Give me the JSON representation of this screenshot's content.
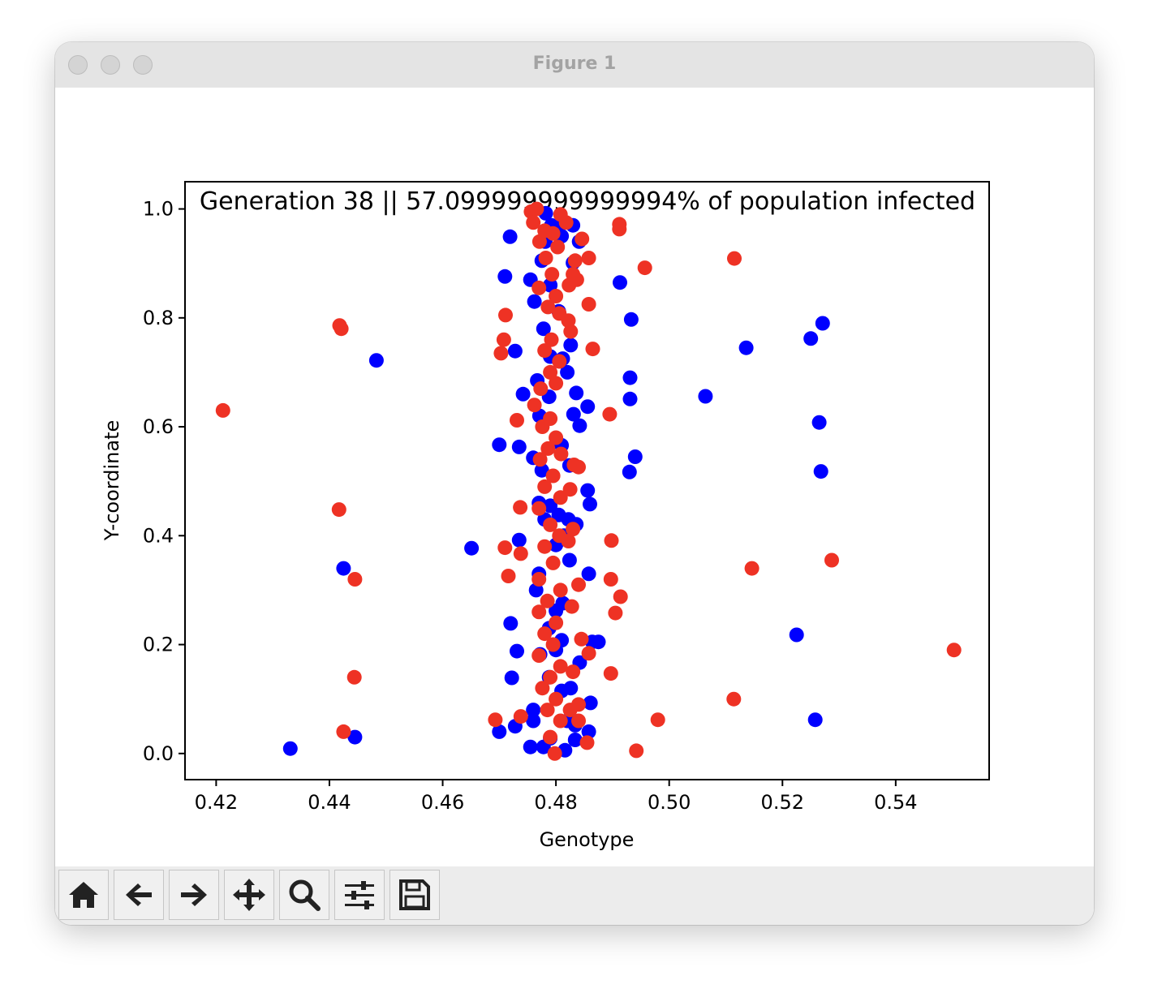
{
  "window": {
    "title": "Figure 1"
  },
  "toolbar": {
    "buttons": [
      {
        "name": "home-button",
        "icon": "home-icon"
      },
      {
        "name": "back-button",
        "icon": "arrow-left-icon"
      },
      {
        "name": "forward-button",
        "icon": "arrow-right-icon"
      },
      {
        "name": "pan-button",
        "icon": "move-icon"
      },
      {
        "name": "zoom-button",
        "icon": "search-icon"
      },
      {
        "name": "configure-subplots-button",
        "icon": "sliders-icon"
      },
      {
        "name": "save-button",
        "icon": "save-icon"
      }
    ]
  },
  "chart_data": {
    "type": "scatter",
    "title": "Generation 38 || 57.099999999999994% of population infected",
    "xlabel": "Genotype",
    "ylabel": "Y-coordinate",
    "xlim": [
      0.4145,
      0.5565
    ],
    "ylim": [
      -0.048,
      1.05
    ],
    "xticks": [
      0.42,
      0.44,
      0.46,
      0.48,
      0.5,
      0.52,
      0.54
    ],
    "xtick_labels": [
      "0.42",
      "0.44",
      "0.46",
      "0.48",
      "0.50",
      "0.52",
      "0.54"
    ],
    "yticks": [
      0.0,
      0.2,
      0.4,
      0.6,
      0.8,
      1.0
    ],
    "ytick_labels": [
      "0.0",
      "0.2",
      "0.4",
      "0.6",
      "0.8",
      "1.0"
    ],
    "grid": false,
    "legend": "none",
    "colors": {
      "blue": "#0000ff",
      "red": "#ee3224"
    },
    "series": [
      {
        "color": "#0000ff",
        "points": [
          [
            0.4331,
            0.009
          ],
          [
            0.4425,
            0.34
          ],
          [
            0.4445,
            0.03
          ],
          [
            0.4483,
            0.722
          ],
          [
            0.4651,
            0.377
          ],
          [
            0.47,
            0.567
          ],
          [
            0.471,
            0.876
          ],
          [
            0.4719,
            0.949
          ],
          [
            0.4728,
            0.739
          ],
          [
            0.472,
            0.239
          ],
          [
            0.4731,
            0.188
          ],
          [
            0.4722,
            0.139
          ],
          [
            0.4728,
            0.05
          ],
          [
            0.47,
            0.04
          ],
          [
            0.4735,
            0.563
          ],
          [
            0.4742,
            0.66
          ],
          [
            0.4735,
            0.392
          ],
          [
            0.4755,
            0.012
          ],
          [
            0.4782,
            0.992
          ],
          [
            0.4792,
            0.97
          ],
          [
            0.4803,
            0.965
          ],
          [
            0.483,
            0.97
          ],
          [
            0.4841,
            0.94
          ],
          [
            0.481,
            0.95
          ],
          [
            0.4775,
            0.905
          ],
          [
            0.483,
            0.901
          ],
          [
            0.479,
            0.86
          ],
          [
            0.4805,
            0.812
          ],
          [
            0.4826,
            0.75
          ],
          [
            0.4812,
            0.725
          ],
          [
            0.479,
            0.729
          ],
          [
            0.482,
            0.7
          ],
          [
            0.4788,
            0.655
          ],
          [
            0.4836,
            0.662
          ],
          [
            0.4856,
            0.637
          ],
          [
            0.4831,
            0.623
          ],
          [
            0.4842,
            0.602
          ],
          [
            0.481,
            0.566
          ],
          [
            0.4824,
            0.529
          ],
          [
            0.4856,
            0.483
          ],
          [
            0.486,
            0.458
          ],
          [
            0.479,
            0.455
          ],
          [
            0.4805,
            0.438
          ],
          [
            0.4822,
            0.43
          ],
          [
            0.4836,
            0.421
          ],
          [
            0.4814,
            0.4
          ],
          [
            0.48,
            0.383
          ],
          [
            0.4824,
            0.355
          ],
          [
            0.4858,
            0.33
          ],
          [
            0.4812,
            0.276
          ],
          [
            0.48,
            0.262
          ],
          [
            0.4788,
            0.23
          ],
          [
            0.4842,
            0.167
          ],
          [
            0.4875,
            0.205
          ],
          [
            0.4864,
            0.205
          ],
          [
            0.481,
            0.208
          ],
          [
            0.48,
            0.19
          ],
          [
            0.4788,
            0.14
          ],
          [
            0.481,
            0.115
          ],
          [
            0.4826,
            0.12
          ],
          [
            0.4861,
            0.093
          ],
          [
            0.482,
            0.06
          ],
          [
            0.4834,
            0.052
          ],
          [
            0.4858,
            0.04
          ],
          [
            0.4834,
            0.025
          ],
          [
            0.4816,
            0.006
          ],
          [
            0.479,
            0.028
          ],
          [
            0.4778,
            0.012
          ],
          [
            0.476,
            0.06
          ],
          [
            0.4772,
            0.182
          ],
          [
            0.476,
            0.08
          ],
          [
            0.4765,
            0.3
          ],
          [
            0.477,
            0.33
          ],
          [
            0.478,
            0.43
          ],
          [
            0.477,
            0.46
          ],
          [
            0.4775,
            0.52
          ],
          [
            0.476,
            0.543
          ],
          [
            0.4771,
            0.62
          ],
          [
            0.4767,
            0.685
          ],
          [
            0.4778,
            0.78
          ],
          [
            0.4762,
            0.83
          ],
          [
            0.4755,
            0.87
          ],
          [
            0.4781,
            0.94
          ],
          [
            0.4913,
            0.865
          ],
          [
            0.4933,
            0.797
          ],
          [
            0.4931,
            0.69
          ],
          [
            0.4931,
            0.651
          ],
          [
            0.494,
            0.545
          ],
          [
            0.493,
            0.517
          ],
          [
            0.5064,
            0.656
          ],
          [
            0.5136,
            0.745
          ],
          [
            0.5225,
            0.218
          ],
          [
            0.525,
            0.762
          ],
          [
            0.5258,
            0.062
          ],
          [
            0.5265,
            0.608
          ],
          [
            0.5268,
            0.518
          ],
          [
            0.5271,
            0.79
          ]
        ]
      },
      {
        "color": "#ee3224",
        "points": [
          [
            0.4212,
            0.63
          ],
          [
            0.4417,
            0.448
          ],
          [
            0.4418,
            0.786
          ],
          [
            0.4421,
            0.78
          ],
          [
            0.4425,
            0.04
          ],
          [
            0.4444,
            0.14
          ],
          [
            0.4445,
            0.32
          ],
          [
            0.4693,
            0.062
          ],
          [
            0.4703,
            0.735
          ],
          [
            0.4708,
            0.76
          ],
          [
            0.4711,
            0.805
          ],
          [
            0.471,
            0.378
          ],
          [
            0.4716,
            0.326
          ],
          [
            0.4731,
            0.612
          ],
          [
            0.4737,
            0.452
          ],
          [
            0.4738,
            0.367
          ],
          [
            0.4738,
            0.068
          ],
          [
            0.4756,
            0.995
          ],
          [
            0.476,
            0.975
          ],
          [
            0.4766,
            1.0
          ],
          [
            0.4771,
            0.94
          ],
          [
            0.478,
            0.96
          ],
          [
            0.4795,
            0.955
          ],
          [
            0.4808,
            0.99
          ],
          [
            0.4818,
            0.975
          ],
          [
            0.4803,
            0.93
          ],
          [
            0.4782,
            0.91
          ],
          [
            0.4793,
            0.88
          ],
          [
            0.477,
            0.855
          ],
          [
            0.48,
            0.84
          ],
          [
            0.4786,
            0.82
          ],
          [
            0.4806,
            0.808
          ],
          [
            0.4822,
            0.795
          ],
          [
            0.4792,
            0.76
          ],
          [
            0.478,
            0.74
          ],
          [
            0.4806,
            0.72
          ],
          [
            0.479,
            0.7
          ],
          [
            0.4773,
            0.67
          ],
          [
            0.48,
            0.68
          ],
          [
            0.4762,
            0.64
          ],
          [
            0.479,
            0.615
          ],
          [
            0.4776,
            0.6
          ],
          [
            0.48,
            0.58
          ],
          [
            0.4786,
            0.56
          ],
          [
            0.4809,
            0.55
          ],
          [
            0.4772,
            0.54
          ],
          [
            0.4795,
            0.51
          ],
          [
            0.478,
            0.49
          ],
          [
            0.4808,
            0.47
          ],
          [
            0.477,
            0.45
          ],
          [
            0.479,
            0.42
          ],
          [
            0.4806,
            0.4
          ],
          [
            0.478,
            0.38
          ],
          [
            0.4795,
            0.35
          ],
          [
            0.477,
            0.32
          ],
          [
            0.4808,
            0.3
          ],
          [
            0.4785,
            0.28
          ],
          [
            0.477,
            0.26
          ],
          [
            0.48,
            0.24
          ],
          [
            0.478,
            0.22
          ],
          [
            0.4795,
            0.2
          ],
          [
            0.477,
            0.18
          ],
          [
            0.4808,
            0.16
          ],
          [
            0.479,
            0.14
          ],
          [
            0.4776,
            0.12
          ],
          [
            0.48,
            0.1
          ],
          [
            0.4785,
            0.08
          ],
          [
            0.4808,
            0.06
          ],
          [
            0.479,
            0.03
          ],
          [
            0.4798,
            0.0
          ],
          [
            0.4834,
            0.905
          ],
          [
            0.4858,
            0.91
          ],
          [
            0.483,
            0.88
          ],
          [
            0.4846,
            0.945
          ],
          [
            0.4837,
            0.87
          ],
          [
            0.4823,
            0.86
          ],
          [
            0.4858,
            0.825
          ],
          [
            0.4865,
            0.743
          ],
          [
            0.4826,
            0.775
          ],
          [
            0.4832,
            0.53
          ],
          [
            0.484,
            0.526
          ],
          [
            0.4825,
            0.485
          ],
          [
            0.483,
            0.412
          ],
          [
            0.4822,
            0.39
          ],
          [
            0.484,
            0.31
          ],
          [
            0.4828,
            0.27
          ],
          [
            0.4845,
            0.21
          ],
          [
            0.4858,
            0.184
          ],
          [
            0.483,
            0.15
          ],
          [
            0.484,
            0.09
          ],
          [
            0.4825,
            0.08
          ],
          [
            0.484,
            0.06
          ],
          [
            0.4855,
            0.02
          ],
          [
            0.4895,
            0.623
          ],
          [
            0.4898,
            0.391
          ],
          [
            0.4897,
            0.32
          ],
          [
            0.4897,
            0.147
          ],
          [
            0.4905,
            0.258
          ],
          [
            0.4912,
            0.972
          ],
          [
            0.4912,
            0.963
          ],
          [
            0.4914,
            0.288
          ],
          [
            0.4942,
            0.005
          ],
          [
            0.4957,
            0.892
          ],
          [
            0.498,
            0.062
          ],
          [
            0.5114,
            0.1
          ],
          [
            0.5115,
            0.909
          ],
          [
            0.5146,
            0.34
          ],
          [
            0.5287,
            0.355
          ],
          [
            0.5503,
            0.19
          ]
        ]
      }
    ]
  }
}
